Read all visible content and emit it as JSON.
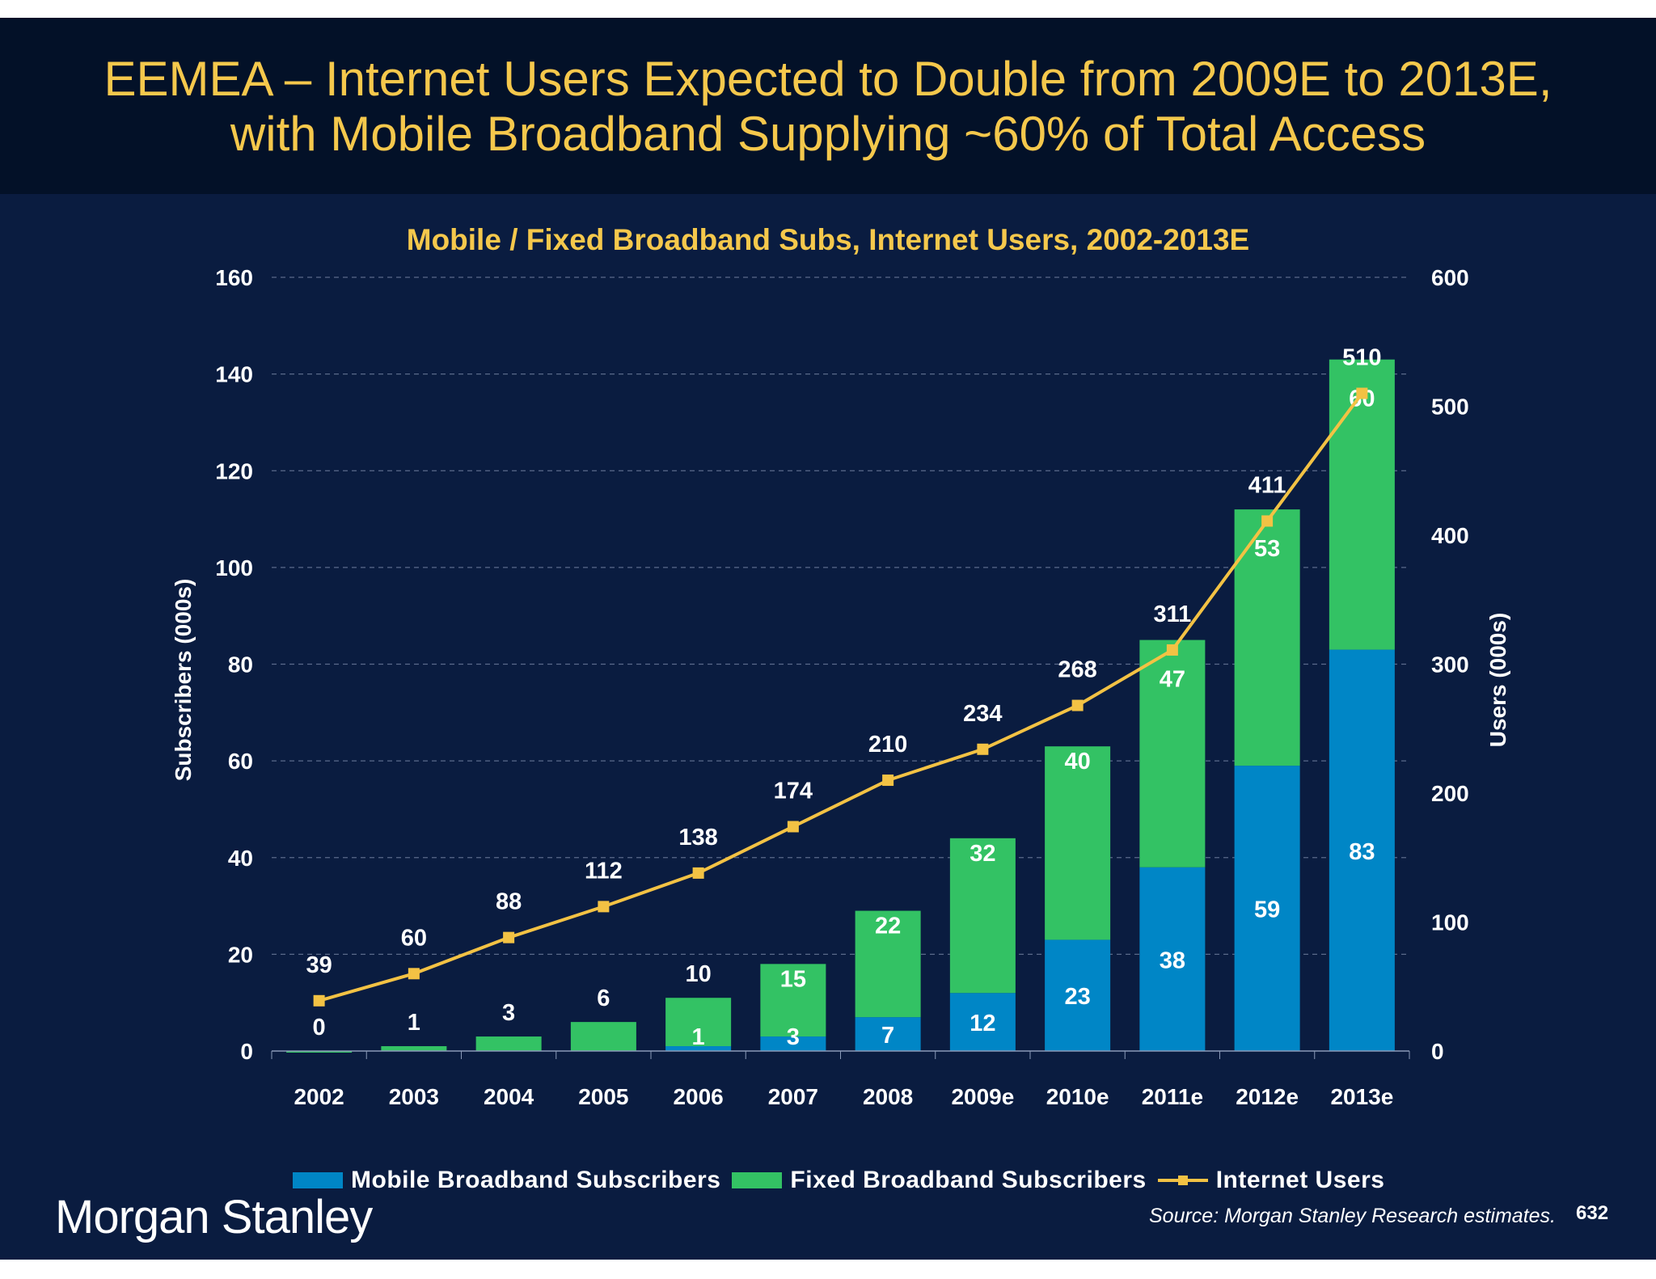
{
  "title_line1": "EEMEA – Internet Users Expected to Double from 2009E to 2013E,",
  "title_line2": "with Mobile Broadband Supplying ~60% of Total Access",
  "logo": "Morgan Stanley",
  "source": "Source: Morgan Stanley Research estimates.",
  "page_number": "632",
  "colors": {
    "mobile": "#0086c6",
    "fixed": "#33c264",
    "line": "#f3c244",
    "title": "#f5c84c"
  },
  "chart_data": {
    "type": "bar",
    "stacked": true,
    "title": "Mobile / Fixed Broadband Subs, Internet Users, 2002-2013E",
    "ylabel": "Subscribers (000s)",
    "y2label": "Users (000s)",
    "ylim": [
      0,
      160
    ],
    "y2lim": [
      0,
      600
    ],
    "yticks": [
      0,
      20,
      40,
      60,
      80,
      100,
      120,
      140,
      160
    ],
    "y2ticks": [
      0,
      100,
      200,
      300,
      400,
      500,
      600
    ],
    "grid": true,
    "legend_position": "bottom",
    "categories": [
      "2002",
      "2003",
      "2004",
      "2005",
      "2006",
      "2007",
      "2008",
      "2009e",
      "2010e",
      "2011e",
      "2012e",
      "2013e"
    ],
    "series": [
      {
        "name": "Mobile Broadband Subscribers",
        "type": "bar",
        "axis": "left",
        "values": [
          0,
          0,
          0,
          0,
          1,
          3,
          7,
          12,
          23,
          38,
          59,
          83
        ]
      },
      {
        "name": "Fixed Broadband Subscribers",
        "type": "bar",
        "axis": "left",
        "values": [
          0,
          1,
          3,
          6,
          10,
          15,
          22,
          32,
          40,
          47,
          53,
          60
        ]
      },
      {
        "name": "Internet Users",
        "type": "line",
        "axis": "right",
        "values": [
          39,
          60,
          88,
          112,
          138,
          174,
          210,
          234,
          268,
          311,
          411,
          510
        ]
      }
    ]
  }
}
